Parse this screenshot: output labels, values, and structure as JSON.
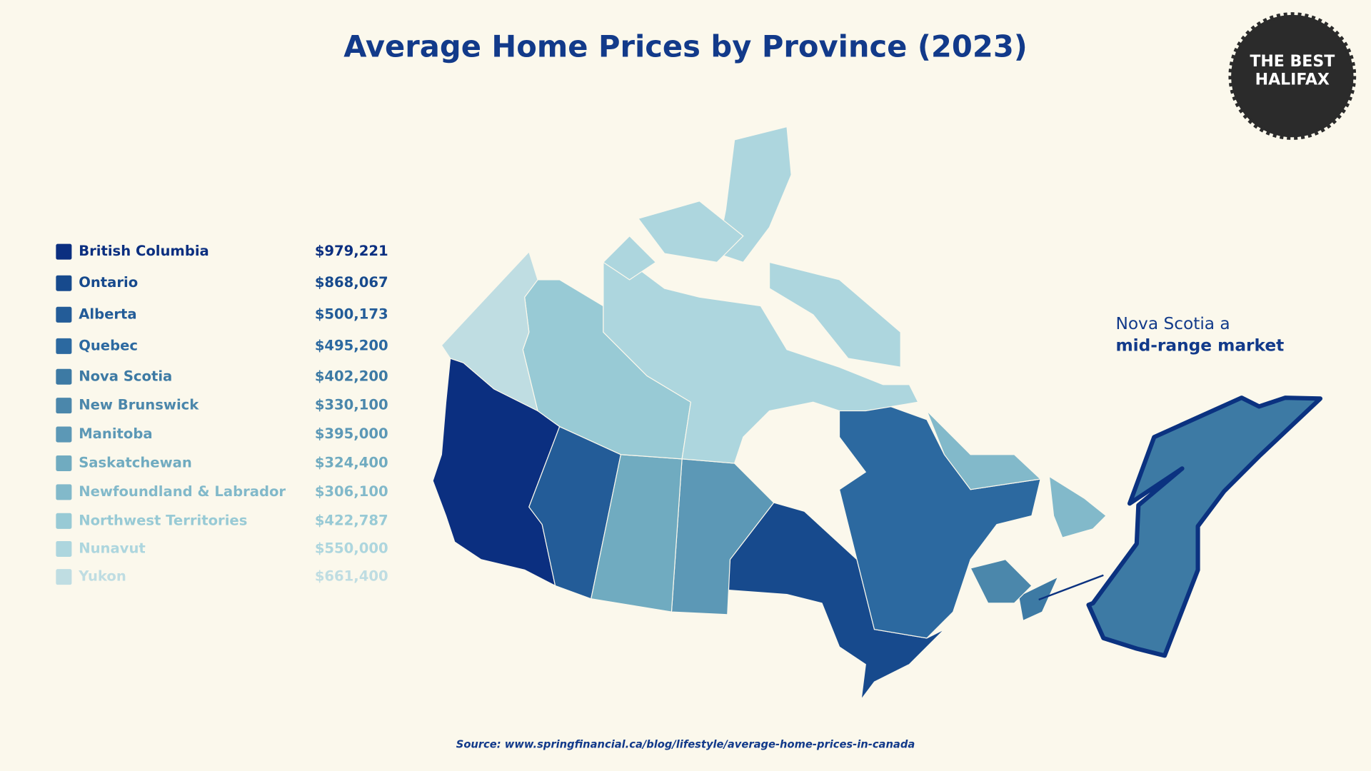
{
  "title": "Average Home Prices by Province (2023)",
  "legend": {
    "items": [
      {
        "name": "British Columbia",
        "price": "$979,221",
        "color": "#0b2f80"
      },
      {
        "name": "Ontario",
        "price": "$868,067",
        "color": "#174a8d"
      },
      {
        "name": "Alberta",
        "price": "$500,173",
        "color": "#235c98"
      },
      {
        "name": "Quebec",
        "price": "$495,200",
        "color": "#2c69a0"
      },
      {
        "name": "Nova Scotia",
        "price": "$402,200",
        "color": "#3d7aa4"
      },
      {
        "name": "New Brunswick",
        "price": "$330,100",
        "color": "#4b87ab"
      },
      {
        "name": "Manitoba",
        "price": "$395,000",
        "color": "#5c98b6"
      },
      {
        "name": "Saskatchewan",
        "price": "$324,400",
        "color": "#70abc0"
      },
      {
        "name": "Newfoundland & Labrador",
        "price": "$306,100",
        "color": "#82b9ca"
      },
      {
        "name": "Northwest Territories",
        "price": "$422,787",
        "color": "#98cad5"
      },
      {
        "name": "Nunavut",
        "price": "$550,000",
        "color": "#add6de"
      },
      {
        "name": "Yukon",
        "price": "$661,400",
        "color": "#bfdde2"
      }
    ]
  },
  "callout": {
    "line1": "Nova Scotia a",
    "line2": "mid-range market"
  },
  "logo": {
    "line1": "THE BEST",
    "line2": "HALIFAX"
  },
  "source": "Source: www.springfinancial.ca/blog/lifestyle/average-home-prices-in-canada"
}
